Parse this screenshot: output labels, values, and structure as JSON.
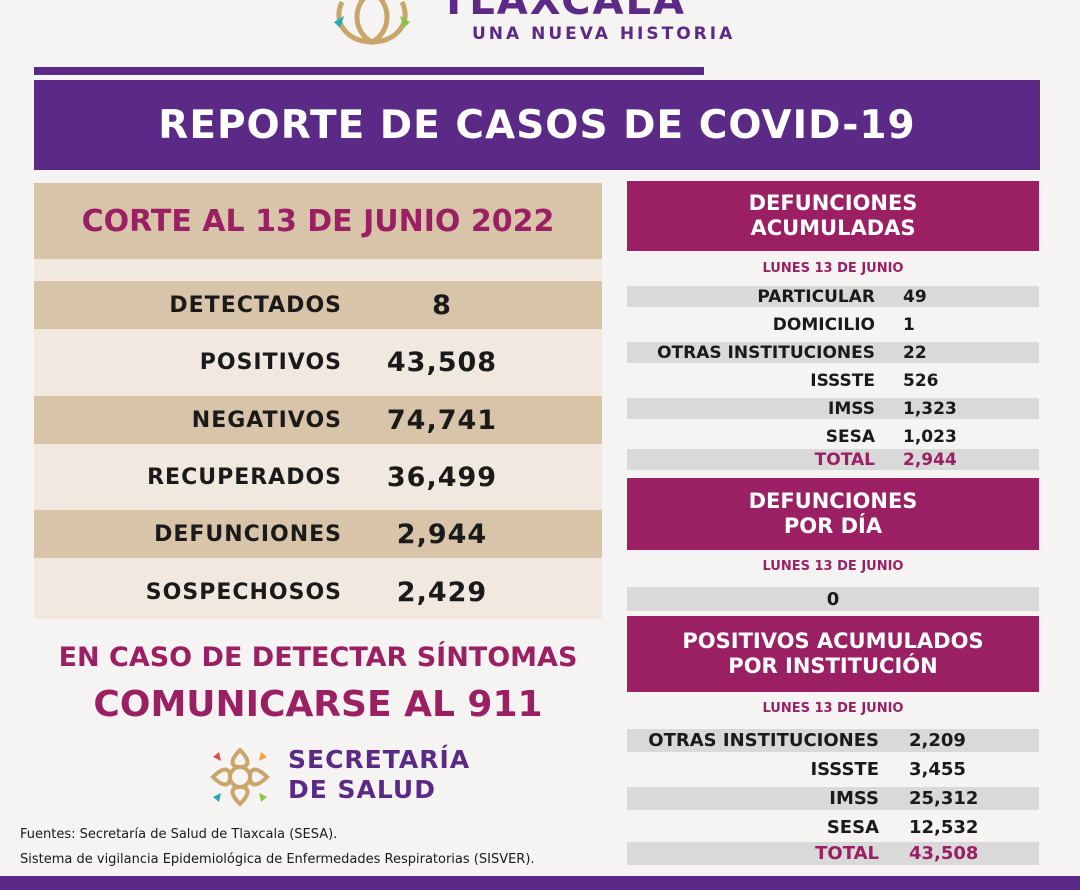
{
  "header": {
    "brand": "TLAXCALA",
    "tagline": "UNA NUEVA HISTORIA",
    "title": "REPORTE DE CASOS DE COVID-19"
  },
  "summary": {
    "corte": "CORTE AL 13 DE JUNIO 2022",
    "rows": [
      {
        "label": "DETECTADOS",
        "value": "8"
      },
      {
        "label": "POSITIVOS",
        "value": "43,508"
      },
      {
        "label": "NEGATIVOS",
        "value": "74,741"
      },
      {
        "label": "RECUPERADOS",
        "value": "36,499"
      },
      {
        "label": "DEFUNCIONES",
        "value": "2,944"
      },
      {
        "label": "SOSPECHOSOS",
        "value": "2,429"
      }
    ]
  },
  "cta": {
    "line1": "EN CASO DE DETECTAR SÍNTOMAS",
    "line2": "COMUNICARSE AL 911"
  },
  "secretaria": {
    "line1": "SECRETARÍA",
    "line2": "DE SALUD"
  },
  "sources": {
    "line1": "Fuentes:  Secretaría de Salud de Tlaxcala (SESA).",
    "line2": "Sistema de vigilancia Epidemiológica de Enfermedades Respiratorias (SISVER)."
  },
  "defunciones_acumuladas": {
    "title1": "DEFUNCIONES",
    "title2": "ACUMULADAS",
    "date": "LUNES 13 DE JUNIO",
    "rows": [
      {
        "label": "PARTICULAR",
        "value": "49"
      },
      {
        "label": "DOMICILIO",
        "value": "1"
      },
      {
        "label": "OTRAS INSTITUCIONES",
        "value": "22"
      },
      {
        "label": "ISSSTE",
        "value": "526"
      },
      {
        "label": "IMSS",
        "value": "1,323"
      },
      {
        "label": "SESA",
        "value": "1,023"
      }
    ],
    "total_label": "TOTAL",
    "total_value": "2,944"
  },
  "defunciones_dia": {
    "title1": "DEFUNCIONES",
    "title2": "POR DÍA",
    "date": "LUNES 13 DE JUNIO",
    "value": "0"
  },
  "positivos_institucion": {
    "title1": "POSITIVOS ACUMULADOS",
    "title2": "POR INSTITUCIÓN",
    "date": "LUNES 13 DE JUNIO",
    "rows": [
      {
        "label": "OTRAS INSTITUCIONES",
        "value": "2,209"
      },
      {
        "label": "ISSSTE",
        "value": "3,455"
      },
      {
        "label": "IMSS",
        "value": "25,312"
      },
      {
        "label": "SESA",
        "value": "12,532"
      }
    ],
    "total_label": "TOTAL",
    "total_value": "43,508"
  },
  "colors": {
    "purple": "#5b2a86",
    "magenta": "#9a1f63",
    "tan": "#d8c4a8",
    "gray_row": "#d9d9d9"
  }
}
